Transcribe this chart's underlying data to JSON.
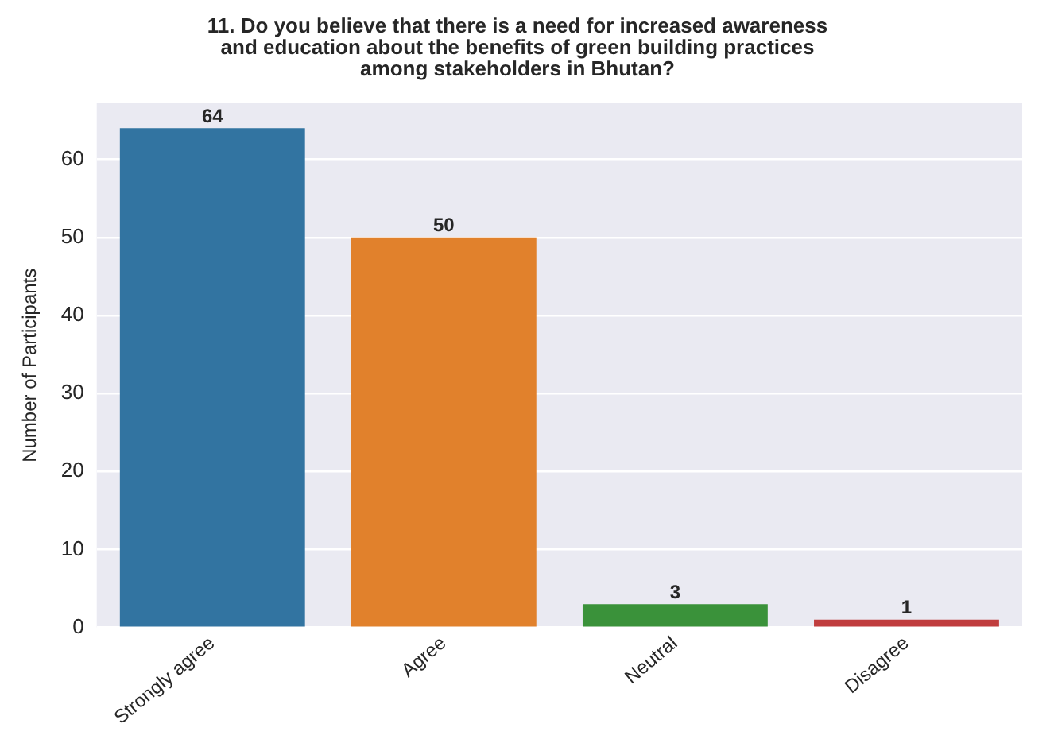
{
  "chart_data": {
    "type": "bar",
    "title": "11. Do you believe that there is a need for increased awareness\nand education about the benefits of green building practices\namong stakeholders in Bhutan?",
    "ylabel": "Number of Participants",
    "categories": [
      "Strongly agree",
      "Agree",
      "Neutral",
      "Disagree"
    ],
    "values": [
      64,
      50,
      3,
      1
    ],
    "colors": [
      "#3274a1",
      "#e1812c",
      "#3a923a",
      "#c03d3e"
    ],
    "ylim": [
      0,
      67.2
    ],
    "yticks": [
      0,
      10,
      20,
      30,
      40,
      50,
      60
    ],
    "grid": "y",
    "data_labels": true,
    "legend": false
  }
}
